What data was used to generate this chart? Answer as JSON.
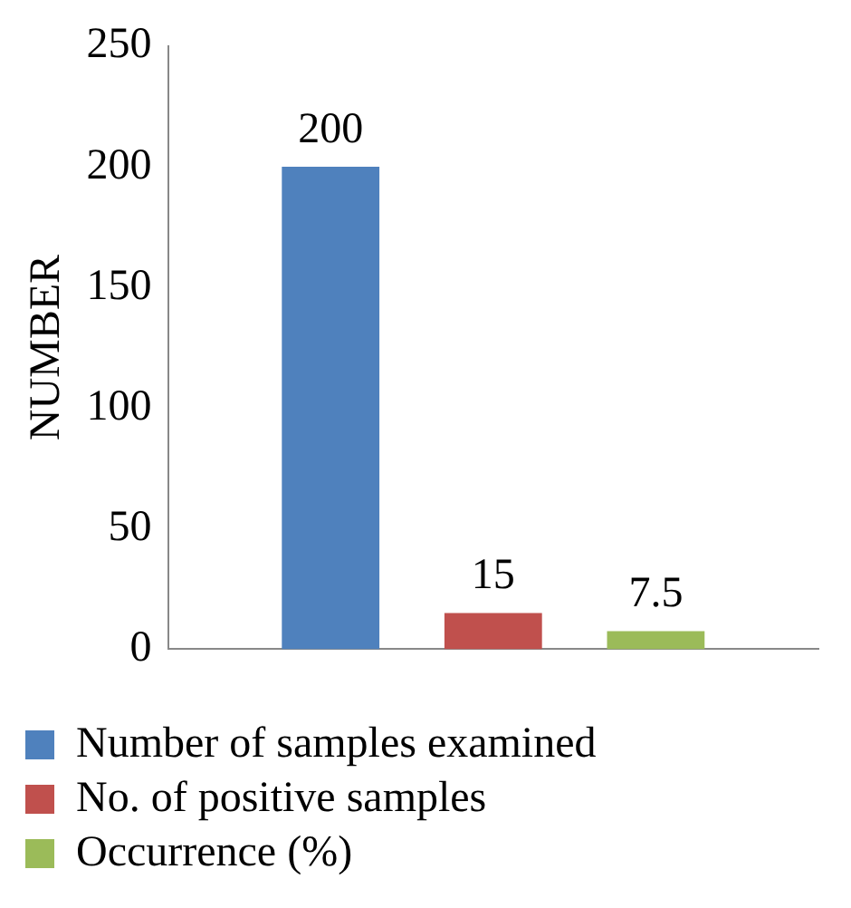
{
  "chart_data": {
    "type": "bar",
    "ylabel": "NUMBER",
    "categories": [
      null
    ],
    "series": [
      {
        "name": "Number of samples examined",
        "color": "#4f81bd",
        "values": [
          200
        ]
      },
      {
        "name": "No. of positive samples",
        "color": "#c0504d",
        "values": [
          15
        ]
      },
      {
        "name": "Occurrence (%)",
        "color": "#9bbb59",
        "values": [
          7.5
        ]
      }
    ],
    "ylim": [
      0,
      250
    ],
    "yticks": [
      0,
      50,
      100,
      150,
      200,
      250
    ],
    "grid": false,
    "legend": "bottom",
    "data_labels": true
  }
}
